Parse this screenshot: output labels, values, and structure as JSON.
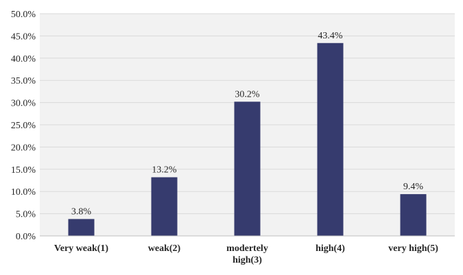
{
  "chart_data": {
    "type": "bar",
    "categories": [
      [
        "Very weak(1)"
      ],
      [
        "weak(2)"
      ],
      [
        "modertely",
        "high(3)"
      ],
      [
        "high(4)"
      ],
      [
        "very high(5)"
      ]
    ],
    "values": [
      3.8,
      13.2,
      30.2,
      43.4,
      9.4
    ],
    "data_labels": [
      "3.8%",
      "13.2%",
      "30.2%",
      "43.4%",
      "9.4%"
    ],
    "y_ticks": [
      "0.0%",
      "5.0%",
      "10.0%",
      "15.0%",
      "20.0%",
      "25.0%",
      "30.0%",
      "35.0%",
      "40.0%",
      "45.0%",
      "50.0%"
    ],
    "ylim": [
      0,
      50
    ],
    "grid": true,
    "colors": {
      "bar": "#363b6e",
      "plot_bg": "#f2f2f2",
      "grid": "#d9d9d9",
      "axis": "#bfbfbf"
    }
  }
}
